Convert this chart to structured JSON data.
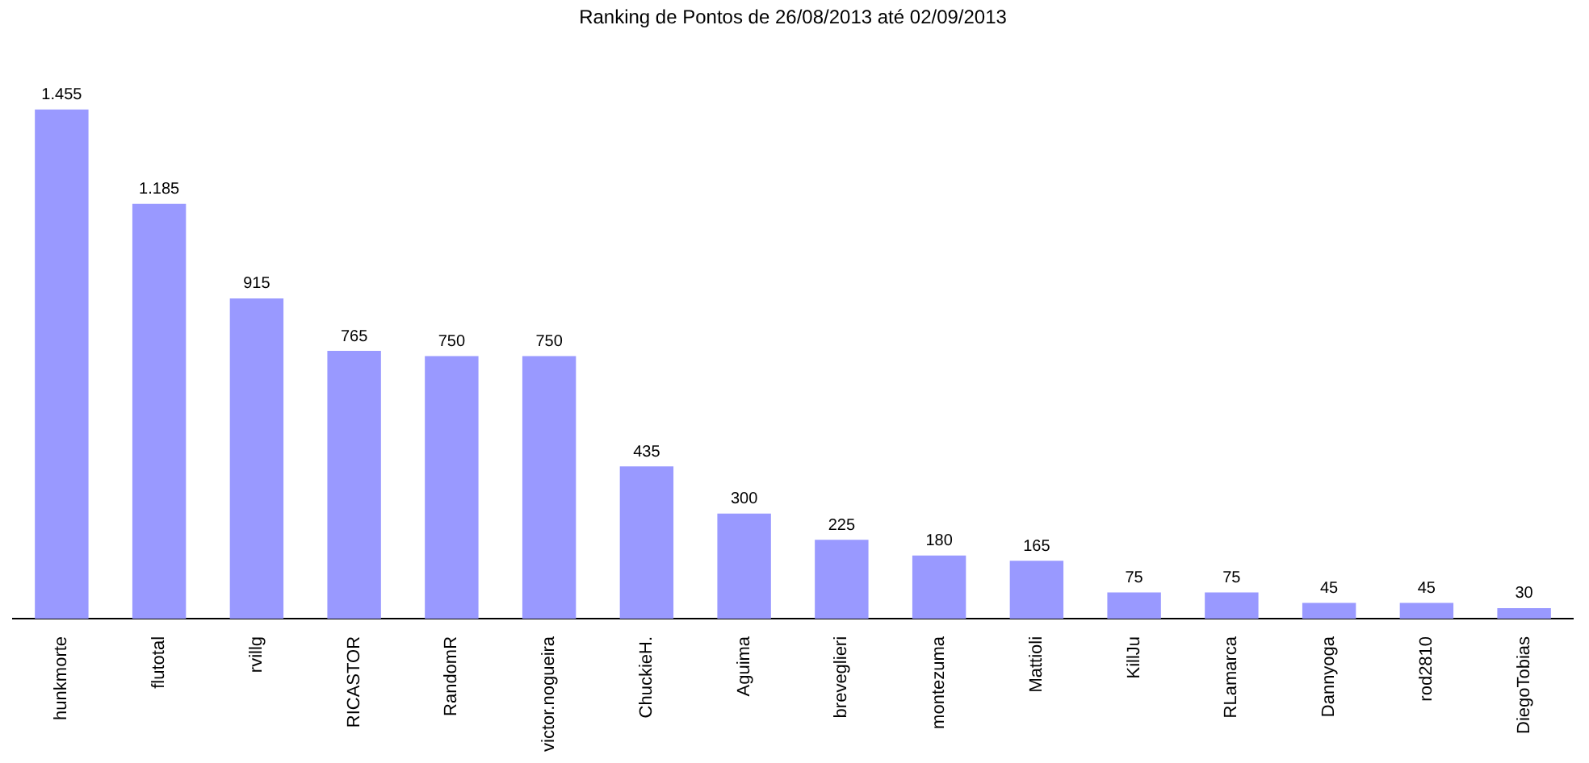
{
  "chart_data": {
    "type": "bar",
    "title": "Ranking de Pontos de 26/08/2013 até 02/09/2013",
    "categories": [
      "hunkmorte",
      "flutotal",
      "rvillg",
      "RICASTOR",
      "RandomR",
      "victor.nogueira",
      "ChuckieH.",
      "Aguima",
      "breveglieri",
      "montezuma",
      "Mattioli",
      "KillJu",
      "RLamarca",
      "Dannyoga",
      "rod2810",
      "DiegoTobias"
    ],
    "values": [
      1455,
      1185,
      915,
      765,
      750,
      750,
      435,
      300,
      225,
      180,
      165,
      75,
      75,
      45,
      45,
      30
    ],
    "value_labels": [
      "1.455",
      "1.185",
      "915",
      "765",
      "750",
      "750",
      "435",
      "300",
      "225",
      "180",
      "165",
      "75",
      "75",
      "45",
      "45",
      "30"
    ],
    "color": "#9999ff"
  }
}
